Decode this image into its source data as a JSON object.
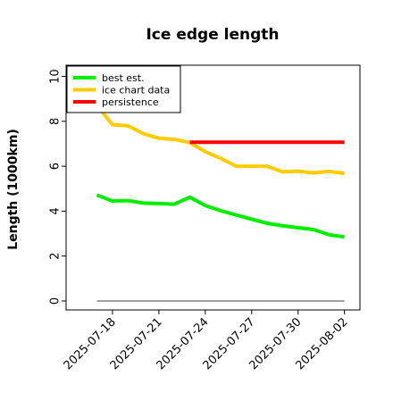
{
  "chart_data": {
    "type": "line",
    "title": "Ice edge length",
    "xlabel": "",
    "ylabel": "Length (1000km)",
    "ylim": [
      -0.4,
      10.5
    ],
    "xlim": [
      "2025-07-15",
      "2025-08-03"
    ],
    "yticks": [
      0,
      2,
      4,
      6,
      8,
      10
    ],
    "xticks": [
      "2025-07-18",
      "2025-07-21",
      "2025-07-24",
      "2025-07-27",
      "2025-07-30",
      "2025-08-02"
    ],
    "legend_position": "top-left",
    "series": [
      {
        "name": "best est.",
        "color": "#00ee00",
        "x": [
          "2025-07-17",
          "2025-07-18",
          "2025-07-19",
          "2025-07-20",
          "2025-07-21",
          "2025-07-22",
          "2025-07-23",
          "2025-07-24",
          "2025-07-25",
          "2025-07-26",
          "2025-07-27",
          "2025-07-28",
          "2025-07-29",
          "2025-07-30",
          "2025-07-31",
          "2025-08-01",
          "2025-08-02"
        ],
        "y": [
          4.72,
          4.45,
          4.47,
          4.36,
          4.34,
          4.31,
          4.62,
          4.25,
          4.02,
          3.83,
          3.64,
          3.46,
          3.35,
          3.26,
          3.18,
          2.95,
          2.85
        ]
      },
      {
        "name": "ice chart data",
        "color": "#ffcc00",
        "x": [
          "2025-07-17",
          "2025-07-18",
          "2025-07-19",
          "2025-07-20",
          "2025-07-21",
          "2025-07-22",
          "2025-07-23",
          "2025-07-24",
          "2025-07-25",
          "2025-07-26",
          "2025-07-27",
          "2025-07-28",
          "2025-07-29",
          "2025-07-30",
          "2025-07-31",
          "2025-08-01",
          "2025-08-02"
        ],
        "y": [
          8.7,
          7.85,
          7.8,
          7.45,
          7.25,
          7.2,
          7.05,
          6.65,
          6.35,
          6.0,
          6.0,
          6.0,
          5.75,
          5.78,
          5.7,
          5.77,
          5.68
        ]
      },
      {
        "name": "persistence",
        "color": "#ff0000",
        "x": [
          "2025-07-23",
          "2025-08-02"
        ],
        "y": [
          7.07,
          7.07
        ]
      },
      {
        "name": "",
        "color": "#808080",
        "x": [
          "2025-07-17",
          "2025-08-02"
        ],
        "y": [
          0,
          0
        ]
      }
    ]
  }
}
